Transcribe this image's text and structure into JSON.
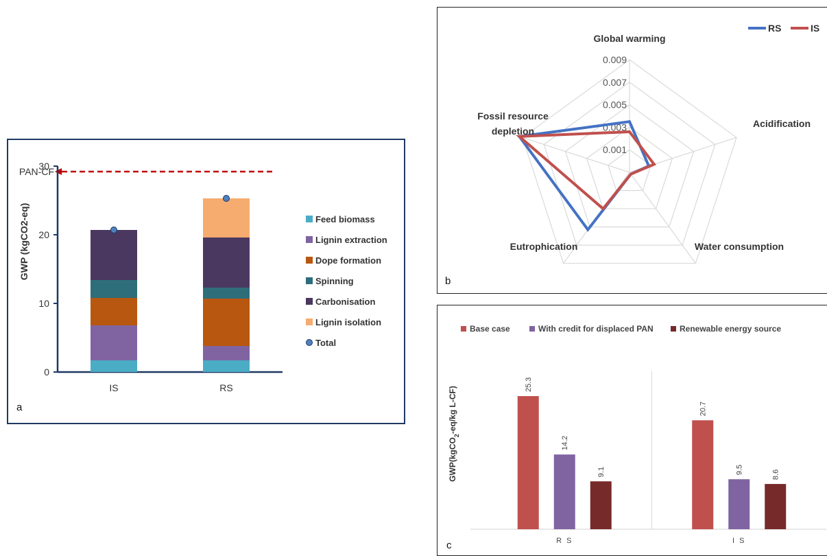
{
  "chart_data": [
    {
      "panel": "a",
      "type": "bar",
      "stacked": true,
      "categories": [
        "IS",
        "RS"
      ],
      "series": [
        {
          "name": "Feed biomass",
          "values": [
            1.7,
            1.7
          ],
          "color": "#4bacc6"
        },
        {
          "name": "Lignin extraction",
          "values": [
            5.1,
            2.1
          ],
          "color": "#8064a2"
        },
        {
          "name": "Dope formation",
          "values": [
            4.0,
            6.9
          ],
          "color": "#b85710"
        },
        {
          "name": "Spinning",
          "values": [
            2.6,
            1.6
          ],
          "color": "#2e6e7b"
        },
        {
          "name": "Carbonisation",
          "values": [
            7.3,
            7.3
          ],
          "color": "#4b3860"
        },
        {
          "name": "Lignin isolation",
          "values": [
            0,
            5.7
          ],
          "color": "#f6ac6f"
        }
      ],
      "total": {
        "name": "Total",
        "values": [
          20.7,
          25.3
        ],
        "color": "#4f81bd"
      },
      "ylabel": "GWP (kgCO2-eq)",
      "yticks": [
        "0",
        "10",
        "20",
        "30"
      ],
      "ylim": [
        0,
        30
      ],
      "reference_line": {
        "label": "PAN-CF",
        "value": 29,
        "color": "#c00000"
      },
      "panel_letter": "a"
    },
    {
      "panel": "b",
      "type": "radar",
      "axes": [
        "Global warming",
        "Acidification",
        "Water consumption",
        "Eutrophication",
        "Fossil resource depletion"
      ],
      "axis_label_lines": [
        [
          "Global warming"
        ],
        [
          "Acidification"
        ],
        [
          "Water consumption"
        ],
        [
          "Eutrophication"
        ],
        [
          "Fossil resource",
          "depletion"
        ]
      ],
      "ticks": [
        "0.001",
        "0.003",
        "0.005",
        "0.007",
        "0.009"
      ],
      "tick_values": [
        0.001,
        0.003,
        0.005,
        0.007,
        0.009
      ],
      "range": [
        -0.001,
        0.009
      ],
      "series": [
        {
          "name": "RS",
          "values": [
            0.0035,
            0.0008,
            -0.0008,
            0.0053,
            0.0093
          ],
          "color": "#4472c4"
        },
        {
          "name": "IS",
          "values": [
            0.0026,
            0.0013,
            -0.0008,
            0.003,
            0.0093
          ],
          "color": "#c0504d"
        }
      ],
      "panel_letter": "b"
    },
    {
      "panel": "c",
      "type": "bar",
      "categories": [
        "R S",
        "I S"
      ],
      "series": [
        {
          "name": "Base case",
          "values": [
            25.3,
            20.7
          ],
          "color": "#c0504d"
        },
        {
          "name": "With credit for displaced PAN",
          "values": [
            14.2,
            9.5
          ],
          "color": "#8064a2"
        },
        {
          "name": "Renewable energy source",
          "values": [
            9.1,
            8.6
          ],
          "color": "#772a2a"
        }
      ],
      "data_labels": [
        [
          "25.3",
          "14.2",
          "9.1"
        ],
        [
          "20.7",
          "9.5",
          "8.6"
        ]
      ],
      "ylabel_main": "GWP(kgCO",
      "ylabel_sub": "2",
      "ylabel_rest": "-eq/kg L-CF)",
      "ylim": [
        0,
        30
      ],
      "panel_letter": "c"
    }
  ]
}
